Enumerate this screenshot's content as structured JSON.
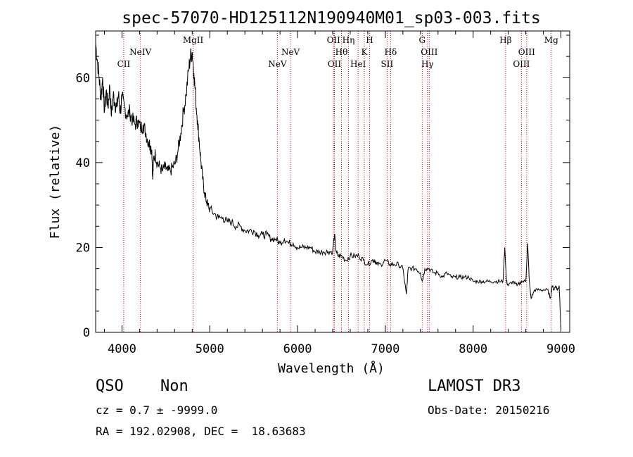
{
  "chart_data": {
    "type": "line",
    "title": "spec-57070-HD125112N190940M01_sp03-003.fits",
    "xlabel": "Wavelength (Å)",
    "ylabel": "Flux (relative)",
    "xlim": [
      3700,
      9100
    ],
    "ylim": [
      0,
      71
    ],
    "xticks": [
      4000,
      5000,
      6000,
      7000,
      8000,
      9000
    ],
    "yticks": [
      0,
      20,
      40,
      60
    ],
    "grid": false,
    "line_color": "#000000",
    "marker_color": "#cc0000",
    "series": [
      {
        "x": [
          3700,
          3720,
          3740,
          3760,
          3780,
          3800,
          3820,
          3840,
          3860,
          3880,
          3900,
          3920,
          3940,
          3960,
          3980,
          4000,
          4030,
          4060,
          4090,
          4120,
          4150,
          4180,
          4210,
          4240,
          4270,
          4300,
          4320,
          4340,
          4350,
          4360,
          4380,
          4400,
          4430,
          4460,
          4490,
          4520,
          4550,
          4580,
          4610,
          4640,
          4670,
          4700,
          4730,
          4760,
          4780,
          4800,
          4820,
          4840,
          4860,
          4880,
          4900,
          4920,
          4940,
          4960,
          4980,
          5000,
          5050,
          5100,
          5150,
          5200,
          5250,
          5300,
          5350,
          5400,
          5450,
          5500,
          5550,
          5600,
          5650,
          5700,
          5750,
          5800,
          5850,
          5900,
          5950,
          6000,
          6050,
          6100,
          6150,
          6200,
          6250,
          6300,
          6350,
          6400,
          6420,
          6440,
          6460,
          6500,
          6550,
          6600,
          6650,
          6700,
          6750,
          6800,
          6850,
          6880,
          6900,
          6950,
          7000,
          7050,
          7100,
          7150,
          7200,
          7240,
          7260,
          7300,
          7350,
          7400,
          7420,
          7450,
          7500,
          7550,
          7600,
          7650,
          7700,
          7750,
          7800,
          7850,
          7900,
          7950,
          8000,
          8050,
          8100,
          8150,
          8200,
          8250,
          8300,
          8340,
          8360,
          8380,
          8400,
          8450,
          8500,
          8550,
          8600,
          8620,
          8640,
          8660,
          8700,
          8750,
          8800,
          8850,
          8880,
          8900,
          8920,
          8940,
          8960,
          8980,
          9000
        ],
        "y": [
          68,
          64,
          60,
          55,
          60,
          52,
          57,
          53,
          58,
          51,
          56,
          54,
          53,
          56,
          52,
          55,
          53,
          51,
          52,
          50,
          49,
          50,
          48,
          49,
          47,
          45,
          44,
          43,
          36,
          41,
          42,
          40,
          39,
          38,
          39,
          38,
          38,
          39,
          40,
          43,
          47,
          52,
          56,
          62,
          65,
          66,
          61,
          55,
          50,
          45,
          40,
          36,
          33,
          31,
          30,
          29,
          28,
          27,
          27,
          26,
          26,
          25,
          25,
          24,
          24,
          24,
          23,
          23,
          23,
          22,
          22,
          21,
          22,
          21,
          21,
          20,
          20,
          20,
          20,
          19,
          19,
          19,
          19,
          19,
          23,
          19,
          18,
          18,
          17,
          18,
          18,
          18,
          17,
          16,
          17,
          17,
          16,
          16,
          17,
          16,
          16,
          16,
          15,
          9,
          15,
          15,
          15,
          14,
          12,
          15,
          15,
          14,
          14,
          13,
          14,
          13,
          13,
          13,
          13,
          13,
          12,
          12,
          12,
          12,
          12,
          12,
          12,
          12,
          20,
          12,
          11,
          12,
          11,
          12,
          12,
          21,
          12,
          8,
          10,
          10,
          10,
          10,
          8,
          11,
          10,
          11,
          10,
          11,
          1
        ]
      }
    ],
    "markers": [
      {
        "wl": 4020,
        "label": "CII",
        "row": 3
      },
      {
        "wl": 4210,
        "label": "NeIV",
        "row": 1
      },
      {
        "wl": 4810,
        "label": "MgII",
        "row": 0
      },
      {
        "wl": 5770,
        "label": "NeV",
        "row": 3
      },
      {
        "wl": 5920,
        "label": "NeV",
        "row": 1
      },
      {
        "wl": 6410,
        "label": "OII",
        "row": 0
      },
      {
        "wl": 6420,
        "label": "OII",
        "row": 3
      },
      {
        "wl": 6500,
        "label": "Hθ",
        "row": 1
      },
      {
        "wl": 6580,
        "label": "Hη",
        "row": 0
      },
      {
        "wl": 6690,
        "label": "HeI",
        "row": 3
      },
      {
        "wl": 6760,
        "label": "K",
        "row": 1
      },
      {
        "wl": 6820,
        "label": "H",
        "row": 0
      },
      {
        "wl": 7020,
        "label": "SII",
        "row": 3
      },
      {
        "wl": 7060,
        "label": "Hδ",
        "row": 1
      },
      {
        "wl": 7420,
        "label": "G",
        "row": 0
      },
      {
        "wl": 7480,
        "label": "Hγ",
        "row": 3
      },
      {
        "wl": 7500,
        "label": "OIII",
        "row": 1
      },
      {
        "wl": 8370,
        "label": "Hβ",
        "row": 0
      },
      {
        "wl": 8550,
        "label": "OIII",
        "row": 3
      },
      {
        "wl": 8610,
        "label": "OIII",
        "row": 1
      },
      {
        "wl": 8890,
        "label": "Mg",
        "row": 0
      }
    ]
  },
  "info": {
    "class": "QSO",
    "subclass": "Non",
    "survey": "LAMOST DR3",
    "cz": "cz = 0.7 ± -9999.0",
    "obs_date": "Obs-Date: 20150216",
    "coords": "RA = 192.02908, DEC =  18.63683"
  }
}
